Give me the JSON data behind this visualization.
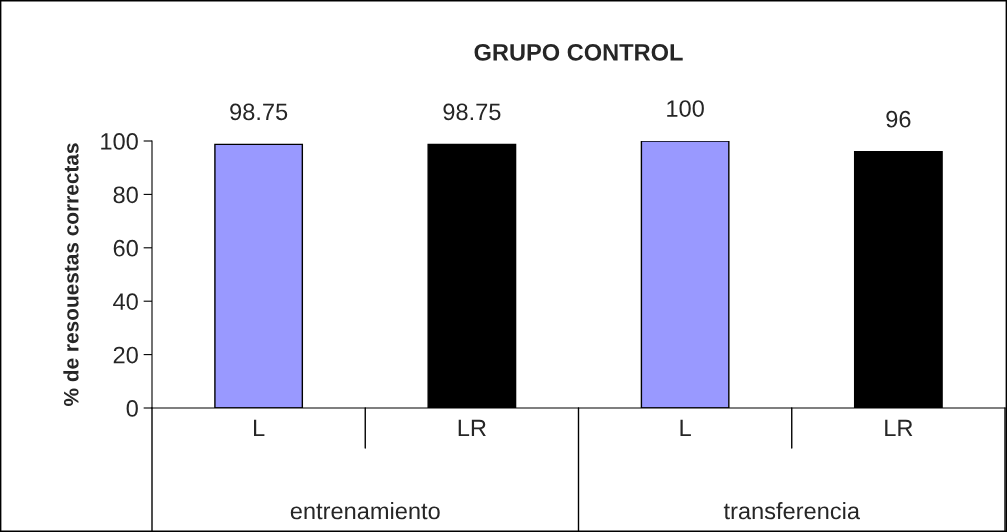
{
  "chart_data": {
    "type": "bar",
    "title": "GRUPO CONTROL",
    "ylabel": "% de resouestas correctas",
    "categories": [
      "L",
      "LR",
      "L",
      "LR"
    ],
    "values": [
      98.75,
      98.75,
      100,
      96
    ],
    "colors": [
      "#9999ff",
      "#000000",
      "#9999ff",
      "#000000"
    ],
    "ylim": [
      0,
      100
    ],
    "yticks": [
      0,
      20,
      40,
      60,
      80,
      100
    ],
    "grid": false,
    "data_labels": true,
    "annotations": [
      "entrenamiento",
      "transferencia"
    ]
  }
}
